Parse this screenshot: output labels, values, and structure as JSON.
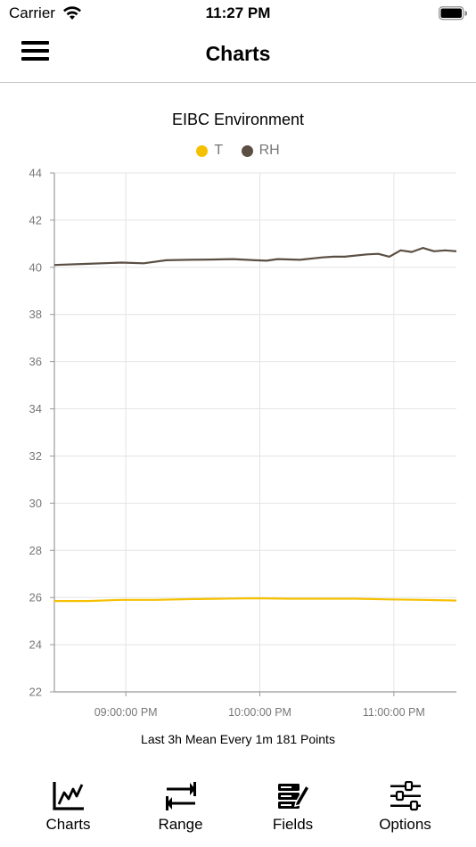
{
  "status_bar": {
    "carrier": "Carrier",
    "time": "11:27 PM"
  },
  "nav": {
    "title": "Charts",
    "menu_icon": "hamburger-icon"
  },
  "chart_data": {
    "type": "line",
    "title": "EIBC Environment",
    "subtitle": "Last 3h Mean Every 1m 181 Points",
    "x": {
      "ticks": [
        "09:00:00 PM",
        "10:00:00 PM",
        "11:00:00 PM"
      ],
      "tick_minutes": [
        32,
        92,
        152
      ],
      "range_minutes": [
        0,
        180
      ]
    },
    "y": {
      "ylim": [
        22,
        44
      ],
      "ticks": [
        22,
        24,
        26,
        28,
        30,
        32,
        34,
        36,
        38,
        40,
        42,
        44
      ]
    },
    "grid": true,
    "legend_placement": "top-center",
    "series": [
      {
        "name": "T",
        "color": "#F5C000",
        "minutes": [
          0,
          15,
          30,
          45,
          60,
          75,
          90,
          105,
          120,
          135,
          150,
          165,
          180
        ],
        "values": [
          25.85,
          25.85,
          25.9,
          25.9,
          25.93,
          25.95,
          25.97,
          25.95,
          25.95,
          25.95,
          25.92,
          25.9,
          25.87
        ]
      },
      {
        "name": "RH",
        "color": "#5B4E43",
        "minutes": [
          0,
          15,
          30,
          40,
          50,
          60,
          70,
          80,
          90,
          95,
          100,
          110,
          120,
          125,
          130,
          140,
          145,
          150,
          155,
          160,
          165,
          170,
          175,
          180
        ],
        "values": [
          40.1,
          40.15,
          40.2,
          40.17,
          40.3,
          40.32,
          40.33,
          40.35,
          40.3,
          40.28,
          40.35,
          40.32,
          40.42,
          40.45,
          40.45,
          40.55,
          40.57,
          40.45,
          40.72,
          40.65,
          40.82,
          40.68,
          40.72,
          40.68
        ]
      }
    ]
  },
  "tabs": [
    {
      "label": "Charts",
      "icon": "line-chart-icon"
    },
    {
      "label": "Range",
      "icon": "swap-arrows-icon"
    },
    {
      "label": "Fields",
      "icon": "fields-edit-icon"
    },
    {
      "label": "Options",
      "icon": "sliders-icon"
    }
  ]
}
